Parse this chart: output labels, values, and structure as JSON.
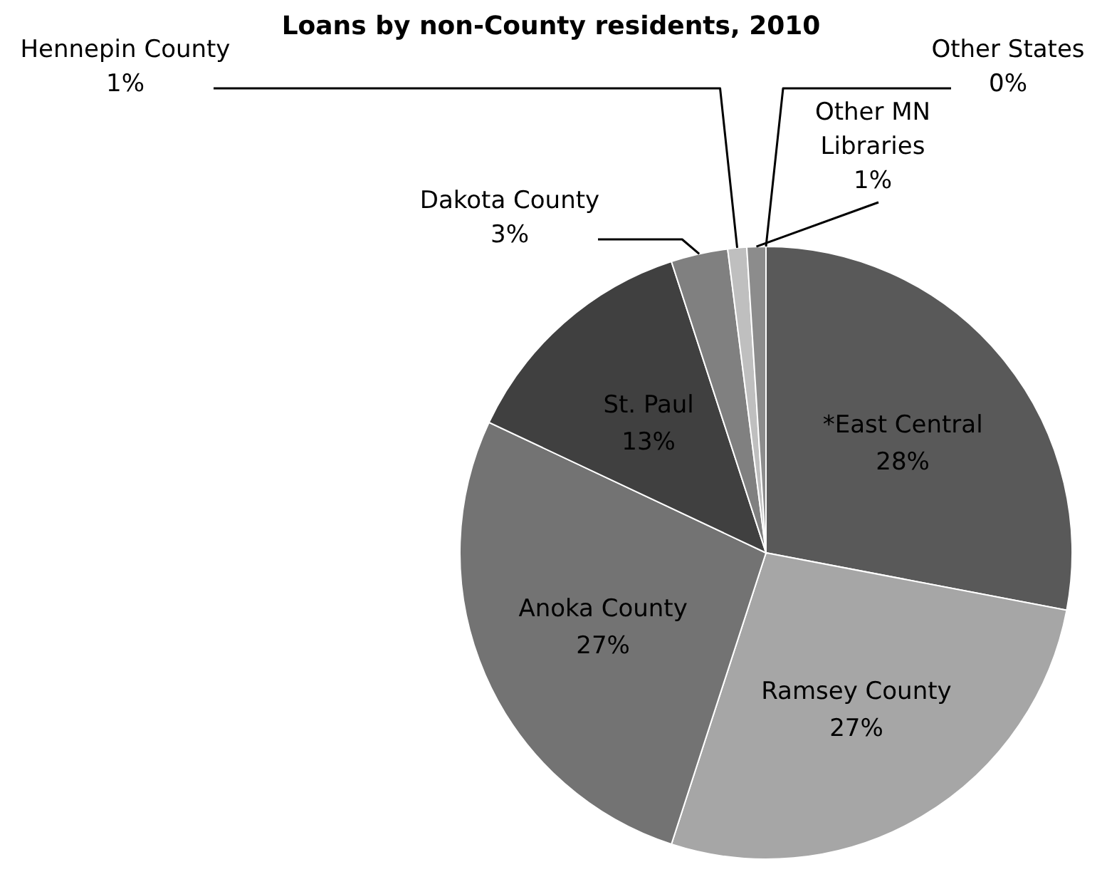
{
  "chart_data": {
    "type": "pie",
    "title": "Loans by non-County residents, 2010",
    "categories": [
      "*East Central",
      "Ramsey County",
      "Anoka County",
      "St. Paul",
      "Dakota County",
      "Hennepin County",
      "Other MN Libraries",
      "Other States"
    ],
    "values": [
      28,
      27,
      27,
      13,
      3,
      1,
      1,
      0
    ],
    "value_labels": [
      "28%",
      "27%",
      "27%",
      "13%",
      "3%",
      "1%",
      "1%",
      "0%"
    ],
    "colors": [
      "#595959",
      "#a6a6a6",
      "#737373",
      "#404040",
      "#808080",
      "#bfbfbf",
      "#8c8c8c",
      "#d9d9d9"
    ]
  }
}
